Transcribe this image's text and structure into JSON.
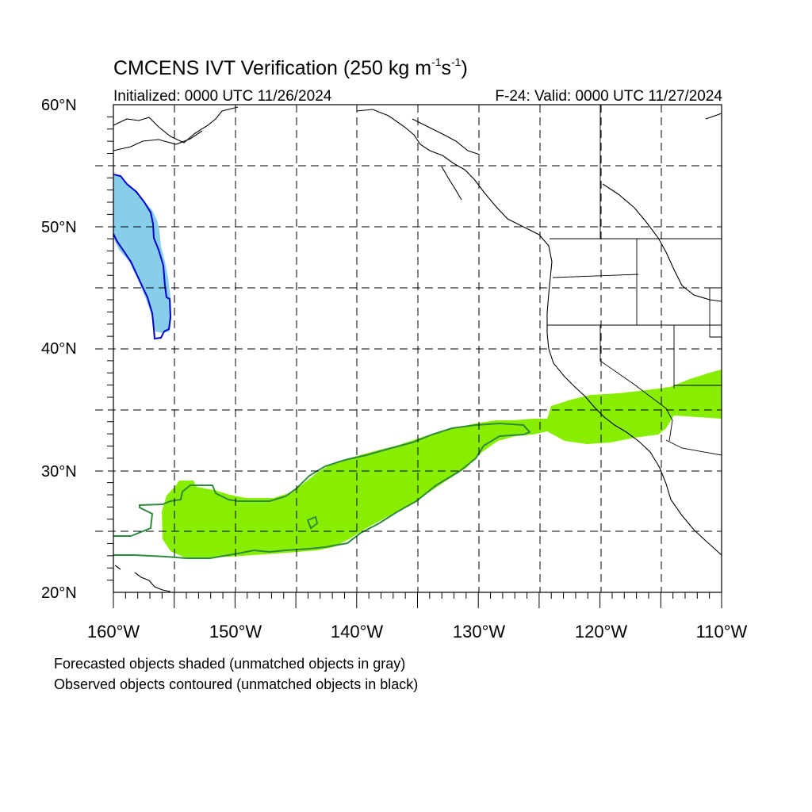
{
  "header": {
    "title_main": "CMCENS IVT Verification (250 kg m",
    "title_sup1": "-1",
    "title_mid": "s",
    "title_sup2": "-1",
    "title_end": ")",
    "initialized": "Initialized: 0000 UTC 11/26/2024",
    "valid": "F-24: Valid: 0000 UTC 11/27/2024"
  },
  "axes": {
    "lat_labels": [
      "60°N",
      "50°N",
      "40°N",
      "30°N",
      "20°N"
    ],
    "lon_labels": [
      "160°W",
      "150°W",
      "140°W",
      "130°W",
      "120°W",
      "110°W"
    ],
    "lat_range": [
      20,
      60
    ],
    "lon_range": [
      -160,
      -110
    ],
    "grid_interval_deg": 5
  },
  "legend": {
    "line1": "Forecasted objects shaded (unmatched objects in gray)",
    "line2": "Observed objects contoured (unmatched objects in black)"
  },
  "colors": {
    "forecast_green": "#88ee00",
    "observed_green": "#2e8b3e",
    "forecast_blue": "#87ceeb",
    "observed_blue": "#0000cc",
    "coastline": "#000000",
    "grid": "#000000"
  },
  "objects": [
    {
      "name": "blue-pair",
      "region": "northern Gulf of Alaska, 41-54N near 160-156W"
    },
    {
      "name": "green-pair",
      "region": "subtropical Pacific to southern California, 23-38N 160-110W"
    }
  ]
}
